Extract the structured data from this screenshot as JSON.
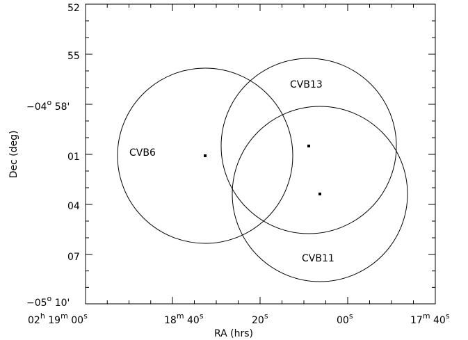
{
  "chart_data": {
    "type": "scatter",
    "xlabel": "RA (hrs)",
    "ylabel": "Dec (deg)",
    "xlim": [
      "02h 19m 00s",
      "02h 17m 40s"
    ],
    "ylim": [
      "-05° 10'",
      "-03° 52'"
    ],
    "x_ticks": [
      {
        "text": "02h 19m 00s"
      },
      {
        "text": "18m 40s"
      },
      {
        "text": "20s"
      },
      {
        "text": "00s"
      },
      {
        "text": "17m 40s"
      }
    ],
    "y_ticks": [
      {
        "text": "52"
      },
      {
        "text": "55"
      },
      {
        "text": "-04° 58'"
      },
      {
        "text": "01"
      },
      {
        "text": "04"
      },
      {
        "text": "07"
      },
      {
        "text": "-05° 10'"
      }
    ],
    "series": [
      {
        "label": "CVB6"
      },
      {
        "label": "CVB13"
      },
      {
        "label": "CVB11"
      }
    ]
  }
}
